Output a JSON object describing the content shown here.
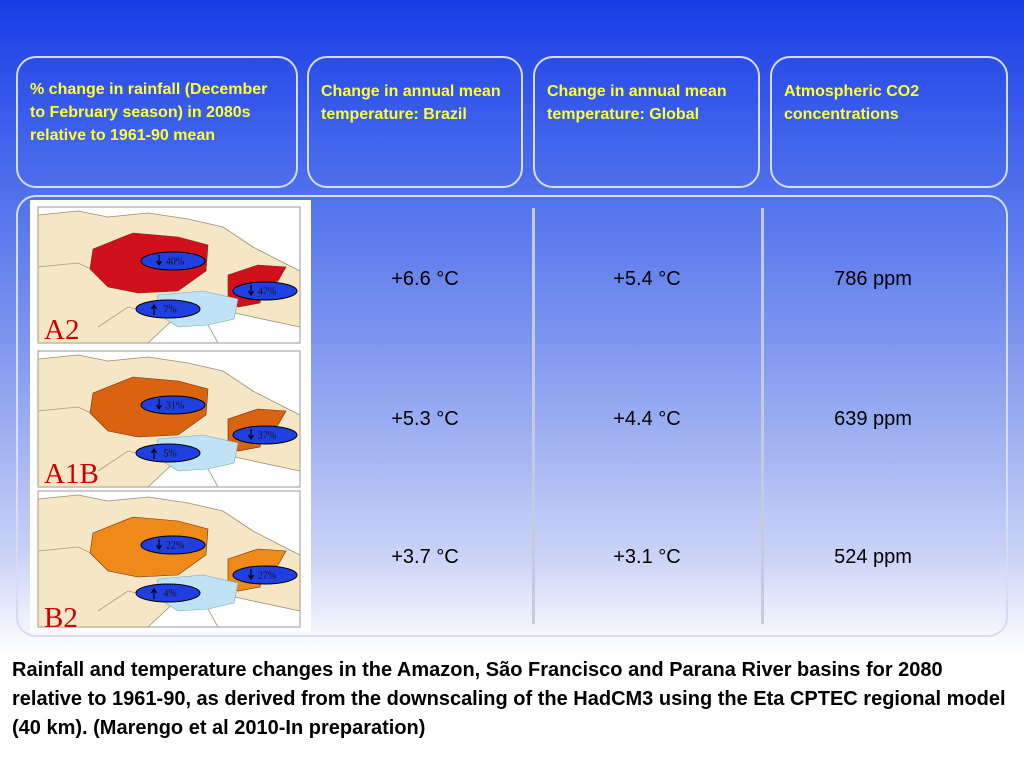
{
  "headers": [
    "% change in rainfall (December to February season) in 2080s relative to 1961-90 mean",
    "Change in annual mean temperature: Brazil",
    "Change in annual mean temperature: Global",
    "Atmospheric CO2 concentrations"
  ],
  "scenarios": [
    {
      "label": "A2",
      "brazil": "+6.6 °C",
      "global": "+5.4 °C",
      "co2": "786 ppm",
      "amazon": "40%",
      "amazon_dir": "down",
      "northeast": "47%",
      "northeast_dir": "down",
      "south": "7%",
      "south_dir": "up",
      "color": "#d0111b"
    },
    {
      "label": "A1B",
      "brazil": "+5.3 °C",
      "global": "+4.4 °C",
      "co2": "639 ppm",
      "amazon": "31%",
      "amazon_dir": "down",
      "northeast": "37%",
      "northeast_dir": "down",
      "south": "5%",
      "south_dir": "up",
      "color": "#d9630e"
    },
    {
      "label": "B2",
      "brazil": "+3.7 °C",
      "global": "+3.1 °C",
      "co2": "524 ppm",
      "amazon": "22%",
      "amazon_dir": "down",
      "northeast": "27%",
      "northeast_dir": "down",
      "south": "4%",
      "south_dir": "up",
      "color": "#ee8a17"
    }
  ],
  "caption": "Rainfall and temperature changes in the Amazon, São Francisco and Parana River basins for 2080 relative to 1961-90, as derived from the downscaling of the HadCM3 using the Eta CPTEC regional model (40 km).  (Marengo et al 2010-In preparation)"
}
